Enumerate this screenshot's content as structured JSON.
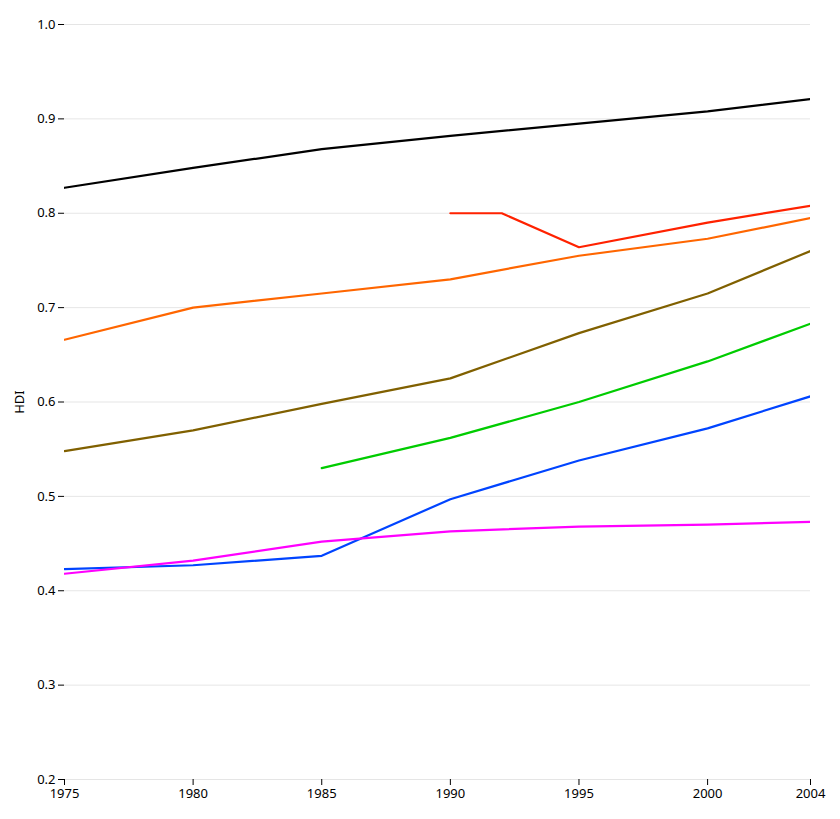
{
  "chart_data": {
    "type": "line",
    "ylabel": "HDI",
    "xlim": [
      1975,
      2004
    ],
    "ylim": [
      0.2,
      1.0
    ],
    "xticks": [
      1975,
      1980,
      1985,
      1990,
      1995,
      2000,
      2004
    ],
    "yticks": [
      0.2,
      0.3,
      0.4,
      0.5,
      0.6,
      0.7,
      0.8,
      0.9,
      {
        "value": 1.0,
        "label": "1.0"
      }
    ],
    "grid": true,
    "series": [
      {
        "color": "#000000",
        "x": [
          1975,
          1980,
          1985,
          1990,
          1995,
          2000,
          2004
        ],
        "values": [
          0.827,
          0.848,
          0.868,
          0.882,
          0.895,
          0.908,
          0.921
        ]
      },
      {
        "color": "#ff2200",
        "x": [
          1990,
          1992,
          1995,
          2000,
          2004
        ],
        "values": [
          0.8,
          0.8,
          0.764,
          0.79,
          0.808
        ]
      },
      {
        "color": "#ff6600",
        "x": [
          1975,
          1980,
          1985,
          1990,
          1995,
          2000,
          2004
        ],
        "values": [
          0.666,
          0.7,
          0.715,
          0.73,
          0.755,
          0.773,
          0.795
        ]
      },
      {
        "color": "#806000",
        "x": [
          1975,
          1980,
          1985,
          1990,
          1995,
          2000,
          2004
        ],
        "values": [
          0.548,
          0.57,
          0.598,
          0.625,
          0.673,
          0.715,
          0.76
        ]
      },
      {
        "color": "#00cc00",
        "x": [
          1985,
          1990,
          1995,
          2000,
          2004
        ],
        "values": [
          0.53,
          0.562,
          0.6,
          0.643,
          0.683
        ]
      },
      {
        "color": "#0044ff",
        "x": [
          1975,
          1980,
          1985,
          1990,
          1995,
          2000,
          2004
        ],
        "values": [
          0.423,
          0.427,
          0.437,
          0.497,
          0.538,
          0.572,
          0.606
        ]
      },
      {
        "color": "#ff00ff",
        "x": [
          1975,
          1980,
          1985,
          1990,
          1995,
          2000,
          2004
        ],
        "values": [
          0.418,
          0.432,
          0.452,
          0.463,
          0.468,
          0.47,
          0.473
        ]
      }
    ]
  }
}
